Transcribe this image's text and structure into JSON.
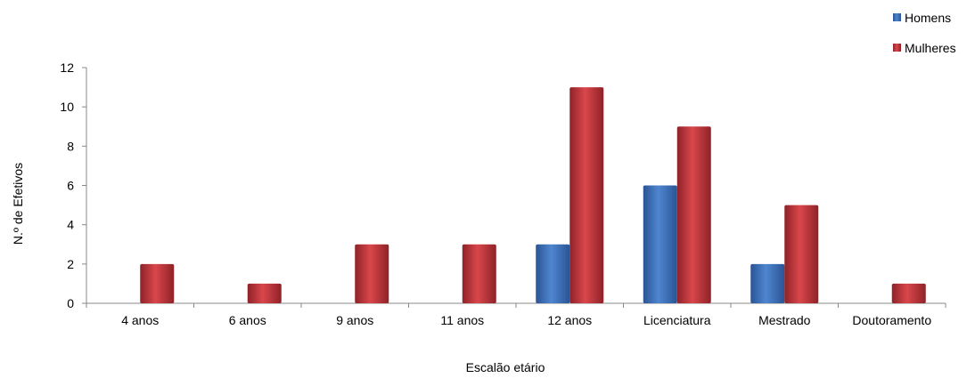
{
  "chart_data": {
    "type": "bar",
    "title": "",
    "xlabel": "Escalão etário",
    "ylabel": "N.º de Efetivos",
    "categories": [
      "4 anos",
      "6 anos",
      "9 anos",
      "11 anos",
      "12 anos",
      "Licenciatura",
      "Mestrado",
      "Doutoramento"
    ],
    "series": [
      {
        "name": "Homens",
        "values": [
          0,
          0,
          0,
          0,
          3,
          6,
          2,
          0
        ],
        "color": "#3a6fb8"
      },
      {
        "name": "Mulheres",
        "values": [
          2,
          1,
          3,
          3,
          11,
          9,
          5,
          1
        ],
        "color": "#c0353a"
      }
    ],
    "ylim": [
      0,
      12
    ],
    "yticks": [
      "0",
      "2",
      "4",
      "6",
      "8",
      "10",
      "12"
    ],
    "grid": false,
    "legend_position": "top-right"
  }
}
